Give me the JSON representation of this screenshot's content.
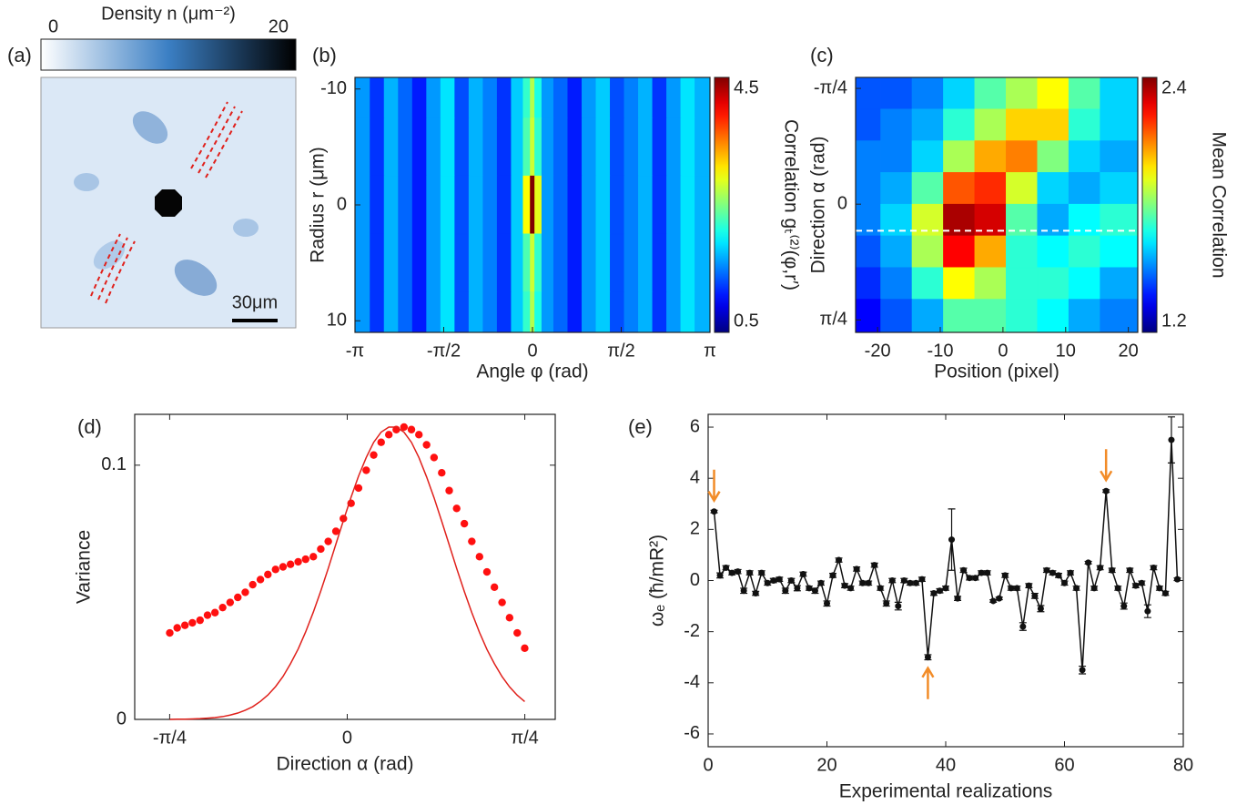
{
  "chart_data": [
    {
      "type": "image",
      "label": "(a)",
      "title": "Density n (μm⁻²)",
      "clim": [
        0,
        20
      ],
      "cticks": [
        0,
        20
      ],
      "colormap": [
        "#ffffff",
        "#3b7fc4",
        "#000000"
      ],
      "scale_bar": "30μm"
    },
    {
      "type": "heatmap",
      "label": "(b)",
      "x_label": "Angle φ (rad)",
      "y_label": "Radius r (μm)",
      "colorbar_label": "Correlation gₜ⁽²⁾(φ,r′)",
      "x": [
        -3,
        -2.75,
        -2.5,
        -2.25,
        -2,
        -1.75,
        -1.5,
        -1.25,
        -1,
        -0.75,
        -0.5,
        -0.25,
        -0.08,
        0,
        0.08,
        0.25,
        0.5,
        0.75,
        1,
        1.25,
        1.5,
        1.75,
        2,
        2.25,
        2.5,
        2.75,
        3
      ],
      "y": [
        -10,
        -5,
        0,
        5,
        10
      ],
      "z": [
        [
          1.6,
          1.2,
          1.7,
          1.4,
          1.1,
          1.6,
          1.9,
          1.3,
          1.7,
          1.5,
          1.2,
          1.8,
          2.2,
          2.7,
          2.1,
          1.6,
          1.4,
          1.1,
          1.6,
          1.8,
          1.3,
          1.5,
          1.7,
          1.2,
          1.6,
          1.9,
          1.7
        ],
        [
          1.6,
          1.2,
          1.7,
          1.4,
          1.1,
          1.6,
          1.9,
          1.3,
          1.7,
          1.5,
          1.2,
          1.8,
          2.3,
          2.8,
          2.2,
          1.6,
          1.4,
          1.1,
          1.6,
          1.8,
          1.3,
          1.5,
          1.7,
          1.2,
          1.6,
          1.9,
          1.7
        ],
        [
          1.6,
          1.2,
          1.7,
          1.4,
          1.1,
          1.6,
          1.9,
          1.3,
          1.7,
          1.5,
          1.2,
          1.8,
          3.0,
          4.5,
          2.9,
          1.6,
          1.4,
          1.1,
          1.6,
          1.8,
          1.3,
          1.5,
          1.7,
          1.2,
          1.6,
          1.9,
          1.7
        ],
        [
          1.6,
          1.2,
          1.7,
          1.4,
          1.1,
          1.6,
          1.9,
          1.3,
          1.7,
          1.5,
          1.2,
          1.8,
          2.3,
          2.8,
          2.2,
          1.6,
          1.4,
          1.1,
          1.6,
          1.8,
          1.3,
          1.5,
          1.7,
          1.2,
          1.6,
          1.9,
          1.7
        ],
        [
          1.6,
          1.2,
          1.7,
          1.4,
          1.1,
          1.6,
          1.9,
          1.3,
          1.7,
          1.5,
          1.2,
          1.8,
          2.2,
          2.7,
          2.1,
          1.6,
          1.4,
          1.1,
          1.6,
          1.8,
          1.3,
          1.5,
          1.7,
          1.2,
          1.6,
          1.9,
          1.7
        ]
      ],
      "xlim": [
        -3.1416,
        3.1416
      ],
      "ylim": [
        -11,
        11
      ],
      "y_inverted": true,
      "xticks": [
        {
          "value": -3.1416,
          "label": "-π"
        },
        {
          "value": -1.5708,
          "label": "-π/2"
        },
        0,
        {
          "value": 1.5708,
          "label": "π/2"
        },
        {
          "value": 3.1416,
          "label": "π"
        }
      ],
      "yticks": [
        -10,
        0,
        10
      ],
      "clim": [
        0.5,
        4.5
      ],
      "cticks": [
        0.5,
        4.5
      ],
      "colormap": "jet"
    },
    {
      "type": "heatmap",
      "label": "(c)",
      "x_label": "Position (pixel)",
      "y_label": "Direction α (rad)",
      "colorbar_label": "Mean Correlation",
      "x": [
        -22,
        -17,
        -12,
        -7,
        -2,
        3,
        8,
        13,
        18
      ],
      "y": [
        -0.75,
        -0.54,
        -0.32,
        -0.11,
        0.11,
        0.32,
        0.54,
        0.75
      ],
      "z": [
        [
          1.45,
          1.45,
          1.5,
          1.6,
          1.75,
          1.85,
          1.95,
          1.75,
          1.6
        ],
        [
          1.45,
          1.5,
          1.55,
          1.7,
          1.85,
          2.0,
          2.0,
          1.7,
          1.6
        ],
        [
          1.5,
          1.5,
          1.6,
          1.85,
          2.05,
          2.1,
          1.8,
          1.6,
          1.55
        ],
        [
          1.5,
          1.55,
          1.75,
          2.15,
          2.2,
          1.9,
          1.6,
          1.55,
          1.6
        ],
        [
          1.5,
          1.6,
          1.9,
          2.35,
          2.3,
          1.75,
          1.55,
          1.65,
          1.7
        ],
        [
          1.45,
          1.55,
          1.85,
          2.25,
          2.05,
          1.7,
          1.65,
          1.7,
          1.65
        ],
        [
          1.4,
          1.5,
          1.7,
          1.95,
          1.85,
          1.7,
          1.7,
          1.65,
          1.55
        ],
        [
          1.35,
          1.45,
          1.55,
          1.75,
          1.75,
          1.7,
          1.65,
          1.55,
          1.5
        ]
      ],
      "xlim": [
        -23.5,
        21.5
      ],
      "ylim": [
        -0.86,
        0.87
      ],
      "y_inverted": true,
      "xticks": [
        -20,
        -10,
        0,
        10,
        20
      ],
      "yticks": [
        {
          "value": -0.7854,
          "label": "-π/4"
        },
        0,
        {
          "value": 0.7854,
          "label": "π/4"
        }
      ],
      "clim": [
        1.2,
        2.4
      ],
      "cticks": [
        1.2,
        2.4
      ],
      "colormap": "jet",
      "hline": 0.18,
      "hline_color": "#ffffff"
    },
    {
      "type": "scatter",
      "label": "(d)",
      "x_label": "Direction α (rad)",
      "y_label": "Variance",
      "x": [
        -0.785,
        -0.752,
        -0.718,
        -0.685,
        -0.651,
        -0.618,
        -0.585,
        -0.551,
        -0.518,
        -0.484,
        -0.451,
        -0.418,
        -0.384,
        -0.351,
        -0.317,
        -0.284,
        -0.251,
        -0.217,
        -0.184,
        -0.15,
        -0.117,
        -0.084,
        -0.05,
        -0.017,
        0.017,
        0.05,
        0.084,
        0.117,
        0.15,
        0.184,
        0.217,
        0.251,
        0.284,
        0.317,
        0.351,
        0.384,
        0.418,
        0.451,
        0.484,
        0.518,
        0.551,
        0.585,
        0.618,
        0.651,
        0.685,
        0.718,
        0.752,
        0.785
      ],
      "series": [
        {
          "type": "scatter",
          "color": "#ff1010",
          "values": [
            0.034,
            0.036,
            0.037,
            0.038,
            0.039,
            0.041,
            0.042,
            0.044,
            0.046,
            0.048,
            0.05,
            0.053,
            0.055,
            0.057,
            0.059,
            0.06,
            0.061,
            0.062,
            0.063,
            0.064,
            0.067,
            0.07,
            0.074,
            0.079,
            0.085,
            0.091,
            0.098,
            0.104,
            0.109,
            0.112,
            0.114,
            0.115,
            0.114,
            0.112,
            0.108,
            0.103,
            0.097,
            0.09,
            0.083,
            0.077,
            0.07,
            0.064,
            0.058,
            0.052,
            0.046,
            0.04,
            0.034,
            0.028
          ]
        },
        {
          "type": "line",
          "color": "#e0201b",
          "values": [
            0,
            0.0001,
            0.0001,
            0.0002,
            0.0003,
            0.0005,
            0.0007,
            0.0011,
            0.0017,
            0.0025,
            0.0036,
            0.005,
            0.0071,
            0.0096,
            0.0129,
            0.0169,
            0.0219,
            0.0277,
            0.0344,
            0.0422,
            0.0505,
            0.0594,
            0.069,
            0.0782,
            0.0874,
            0.0957,
            0.103,
            0.109,
            0.113,
            0.115,
            0.115,
            0.113,
            0.109,
            0.103,
            0.0954,
            0.0872,
            0.0779,
            0.0687,
            0.0594,
            0.0503,
            0.042,
            0.0342,
            0.0275,
            0.0219,
            0.0168,
            0.0128,
            0.0095,
            0.007
          ]
        }
      ],
      "xlim": [
        -0.94,
        0.92
      ],
      "ylim": [
        0,
        0.12
      ],
      "xticks": [
        {
          "value": -0.7854,
          "label": "-π/4"
        },
        0,
        {
          "value": 0.7854,
          "label": "π/4"
        }
      ],
      "yticks": [
        0,
        0.1
      ]
    },
    {
      "type": "line",
      "label": "(e)",
      "x_label": "Experimental realizations",
      "y_label": "ωₑ (ħ/mR²)",
      "x": [
        1,
        2,
        3,
        4,
        5,
        6,
        7,
        8,
        9,
        10,
        11,
        12,
        13,
        14,
        15,
        16,
        17,
        18,
        19,
        20,
        21,
        22,
        23,
        24,
        25,
        26,
        27,
        28,
        29,
        30,
        31,
        32,
        33,
        34,
        35,
        36,
        37,
        38,
        39,
        40,
        41,
        42,
        43,
        44,
        45,
        46,
        47,
        48,
        49,
        50,
        51,
        52,
        53,
        54,
        55,
        56,
        57,
        58,
        59,
        60,
        61,
        62,
        63,
        64,
        65,
        66,
        67,
        68,
        69,
        70,
        71,
        72,
        73,
        74,
        75,
        76,
        77,
        78,
        79
      ],
      "series": [
        {
          "color": "#111111",
          "values": [
            2.7,
            0.2,
            0.5,
            0.3,
            0.35,
            -0.4,
            0.3,
            -0.5,
            0.3,
            -0.1,
            0.0,
            0.05,
            -0.4,
            0.0,
            -0.3,
            0.25,
            -0.3,
            -0.4,
            -0.1,
            -0.9,
            0.2,
            0.8,
            -0.2,
            -0.3,
            0.45,
            -0.1,
            -0.1,
            0.6,
            -0.3,
            -0.9,
            0.0,
            -1.0,
            0.0,
            -0.1,
            -0.1,
            0.05,
            -3.0,
            -0.5,
            -0.4,
            -0.3,
            1.6,
            -0.7,
            0.4,
            0.1,
            0.1,
            0.3,
            0.3,
            -0.8,
            -0.7,
            0.2,
            -0.3,
            -0.3,
            -1.8,
            -0.2,
            -0.6,
            -1.1,
            0.4,
            0.3,
            0.2,
            -0.1,
            0.3,
            -0.3,
            -3.5,
            0.7,
            -0.3,
            0.5,
            3.5,
            0.4,
            -0.3,
            -1.0,
            0.4,
            -0.2,
            -0.1,
            -1.2,
            0.5,
            -0.3,
            -0.5,
            5.5,
            0.05
          ],
          "errors": [
            0.05,
            0.1,
            0.08,
            0.08,
            0.08,
            0.1,
            0.08,
            0.08,
            0.08,
            0.08,
            0.08,
            0.08,
            0.1,
            0.08,
            0.1,
            0.08,
            0.08,
            0.1,
            0.08,
            0.1,
            0.08,
            0.08,
            0.08,
            0.08,
            0.08,
            0.08,
            0.08,
            0.08,
            0.08,
            0.1,
            0.08,
            0.15,
            0.08,
            0.08,
            0.08,
            0.08,
            0.1,
            0.08,
            0.08,
            0.08,
            1.2,
            0.08,
            0.08,
            0.08,
            0.08,
            0.08,
            0.08,
            0.05,
            0.05,
            0.08,
            0.08,
            0.08,
            0.15,
            0.08,
            0.1,
            0.12,
            0.08,
            0.08,
            0.08,
            0.08,
            0.08,
            0.08,
            0.15,
            0.05,
            0.08,
            0.08,
            0.05,
            0.08,
            0.08,
            0.12,
            0.08,
            0.08,
            0.08,
            0.25,
            0.08,
            0.08,
            0.08,
            0.9,
            0.05
          ]
        }
      ],
      "arrows": [
        {
          "x": 1,
          "side": "above"
        },
        {
          "x": 37,
          "side": "below"
        },
        {
          "x": 67,
          "side": "above"
        }
      ],
      "arrow_color": "#f28c28",
      "xlim": [
        0,
        80
      ],
      "ylim": [
        -6.5,
        6.5
      ],
      "xticks": [
        0,
        20,
        40,
        60,
        80
      ],
      "yticks": [
        -6,
        -4,
        -2,
        0,
        2,
        4,
        6
      ]
    }
  ]
}
